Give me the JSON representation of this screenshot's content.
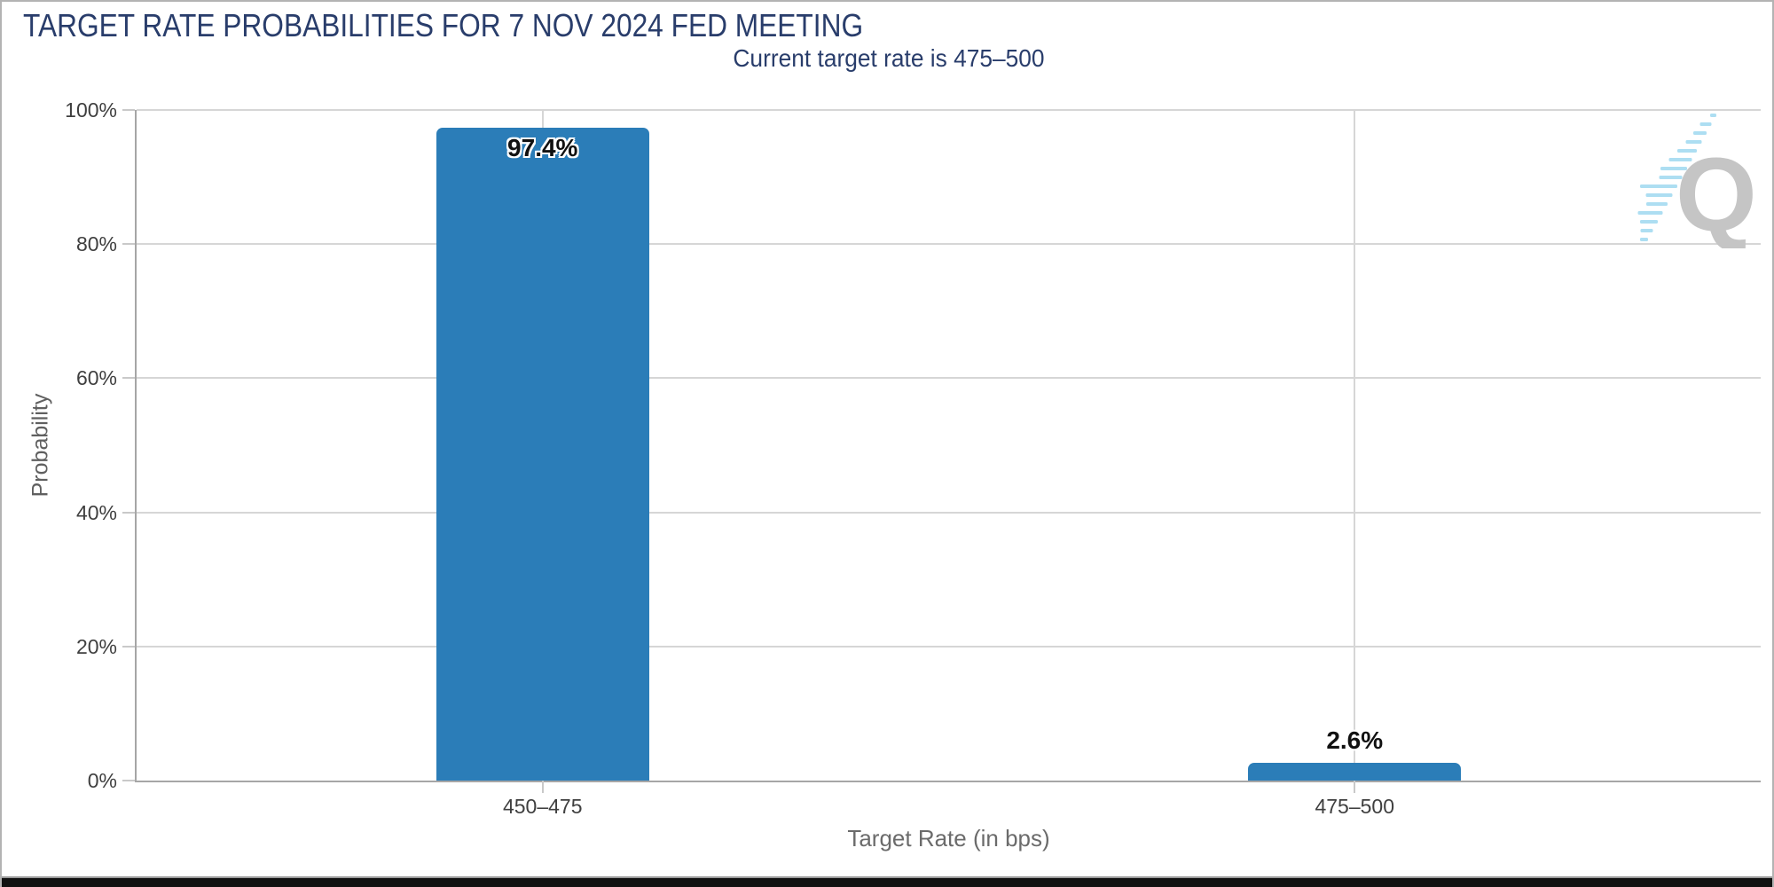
{
  "header": {
    "title": "TARGET RATE PROBABILITIES FOR 7 NOV 2024 FED MEETING",
    "subtitle": "Current target rate is 475–500"
  },
  "chart_data": {
    "type": "bar",
    "title": "TARGET RATE PROBABILITIES FOR 7 NOV 2024 FED MEETING",
    "subtitle": "Current target rate is 475–500",
    "categories": [
      "450–475",
      "475–500"
    ],
    "values": [
      97.4,
      2.6
    ],
    "value_labels": [
      "97.4%",
      "2.6%"
    ],
    "xlabel": "Target Rate (in bps)",
    "ylabel": "Probability",
    "ylim": [
      0,
      100
    ],
    "ytick_labels": [
      "0%",
      "20%",
      "40%",
      "60%",
      "80%",
      "100%"
    ],
    "grid": true,
    "legend": false
  },
  "logo": {
    "name": "quikstrike-watermark",
    "letter": "Q"
  },
  "colors": {
    "accent_bar": "#2b7db8",
    "title_navy": "#293d6b",
    "grid_line": "#d6d6d6",
    "axis_line": "#a6a6a6",
    "tick_line": "#c9c9c9",
    "tick_text": "#3f3f3f",
    "axis_title_text": "#6b6b6b",
    "ylabel_text": "#606060",
    "value_text": "#111111",
    "logo_gray": "#c5c5c5",
    "logo_blue": "#a9dcf1",
    "frame_border": "#b3b3b3",
    "bottom_strip": "#111111",
    "bottom_strip_line": "#9a9a9a"
  }
}
